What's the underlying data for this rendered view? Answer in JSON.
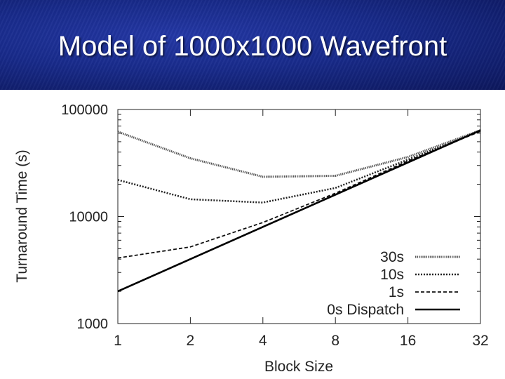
{
  "slide": {
    "title": "Model of 1000x1000 Wavefront"
  },
  "chart_data": {
    "type": "line",
    "xlabel": "Block Size",
    "ylabel": "Turnaround Time (s)",
    "x_scale": "log2",
    "y_scale": "log10",
    "xlim": [
      1,
      32
    ],
    "ylim": [
      1000,
      100000
    ],
    "x_ticks": [
      1,
      2,
      4,
      8,
      16,
      32
    ],
    "x_tick_labels": [
      "1",
      "2",
      "4",
      "8",
      "16",
      "32"
    ],
    "y_ticks": [
      1000,
      10000,
      100000
    ],
    "y_tick_labels": [
      "1000",
      "10000",
      "100000"
    ],
    "x": [
      1,
      2,
      4,
      8,
      16,
      32
    ],
    "grid": false,
    "legend_position": "bottom-right",
    "series": [
      {
        "name": "30s",
        "style": "dotted-thick",
        "values": [
          62000,
          35000,
          23500,
          24000,
          36000,
          64000
        ]
      },
      {
        "name": "10s",
        "style": "dotted",
        "values": [
          22000,
          14500,
          13500,
          18500,
          34000,
          63000
        ]
      },
      {
        "name": "1s",
        "style": "dashed",
        "values": [
          4100,
          5200,
          8800,
          16500,
          33000,
          62500
        ]
      },
      {
        "name": "0s Dispatch",
        "style": "solid",
        "values": [
          2000,
          4000,
          8000,
          16000,
          32000,
          64000
        ]
      }
    ]
  }
}
